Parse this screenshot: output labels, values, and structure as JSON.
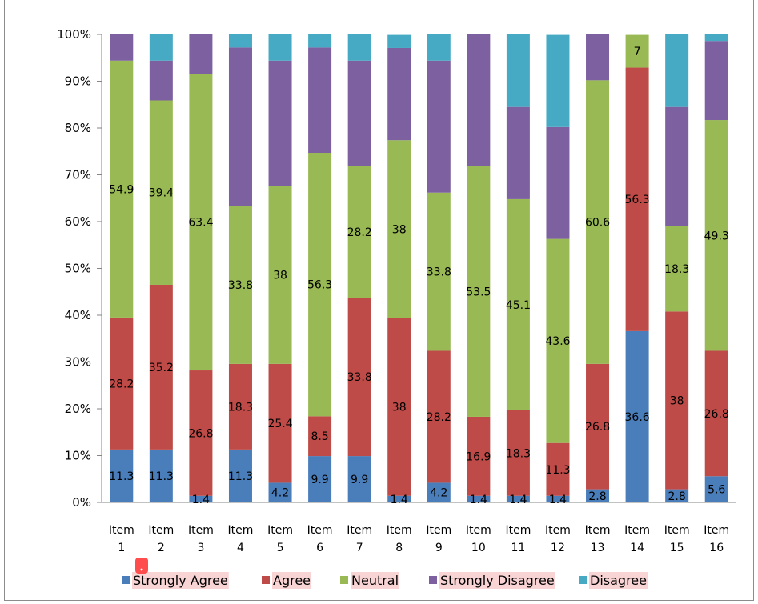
{
  "chart_data": {
    "type": "bar",
    "stacked": true,
    "percent_stacked": true,
    "categories": [
      [
        "Item",
        "1"
      ],
      [
        "Item",
        "2"
      ],
      [
        "Item",
        "3"
      ],
      [
        "Item",
        "4"
      ],
      [
        "Item",
        "5"
      ],
      [
        "Item",
        "6"
      ],
      [
        "Item",
        "7"
      ],
      [
        "Item",
        "8"
      ],
      [
        "Item",
        "9"
      ],
      [
        "Item",
        "10"
      ],
      [
        "Item",
        "11"
      ],
      [
        "Item",
        "12"
      ],
      [
        "Item",
        "13"
      ],
      [
        "Item",
        "14"
      ],
      [
        "Item",
        "15"
      ],
      [
        "Item",
        "16"
      ]
    ],
    "y_ticks": [
      "0%",
      "10%",
      "20%",
      "30%",
      "40%",
      "50%",
      "60%",
      "70%",
      "80%",
      "90%",
      "100%"
    ],
    "ylim": [
      0,
      100
    ],
    "grid": false,
    "legend_position": "bottom",
    "series": [
      {
        "name": "Strongly Agree",
        "color": "#4a7ebb",
        "values": [
          11.3,
          11.3,
          1.4,
          11.3,
          4.2,
          9.9,
          9.9,
          1.4,
          4.2,
          1.4,
          1.4,
          1.4,
          2.8,
          36.6,
          2.8,
          5.6
        ],
        "labels": [
          "11.3",
          "11.3",
          "1.4",
          "11.3",
          "4.2",
          "9.9",
          "9.9",
          "1.4",
          "4.2",
          "1.4",
          "1.4",
          "1.4",
          "2.8",
          "36.6",
          "2.8",
          "5.6"
        ]
      },
      {
        "name": "Agree",
        "color": "#be4b48",
        "values": [
          28.2,
          35.2,
          26.8,
          18.3,
          25.4,
          8.5,
          33.8,
          38,
          28.2,
          16.9,
          18.3,
          11.3,
          26.8,
          56.3,
          38,
          26.8
        ],
        "labels": [
          "28.2",
          "35.2",
          "26.8",
          "18.3",
          "25.4",
          "8.5",
          "33.8",
          "38",
          "28.2",
          "16.9",
          "18.3",
          "11.3",
          "26.8",
          "56.3",
          "38",
          "26.8"
        ]
      },
      {
        "name": "Neutral",
        "color": "#98b954",
        "values": [
          54.9,
          39.4,
          63.4,
          33.8,
          38,
          56.3,
          28.2,
          38,
          33.8,
          53.5,
          45.1,
          43.6,
          60.6,
          7,
          18.3,
          49.3
        ],
        "labels": [
          "54.9",
          "39.4",
          "63.4",
          "33.8",
          "38",
          "56.3",
          "28.2",
          "38",
          "33.8",
          "53.5",
          "45.1",
          "43.6",
          "60.6",
          "7",
          "18.3",
          "49.3"
        ]
      },
      {
        "name": "Strongly Disagree",
        "color": "#7d60a0",
        "values": [
          5.6,
          8.5,
          8.5,
          33.8,
          26.8,
          22.5,
          22.5,
          19.7,
          28.2,
          28.2,
          19.7,
          23.9,
          9.9,
          0,
          25.4,
          16.9
        ],
        "labels": []
      },
      {
        "name": "Disagree",
        "color": "#46aac5",
        "values": [
          0,
          5.6,
          0,
          2.8,
          5.6,
          2.8,
          5.6,
          2.8,
          5.6,
          0,
          15.5,
          19.7,
          0,
          0,
          15.5,
          1.4
        ],
        "labels": []
      }
    ]
  }
}
